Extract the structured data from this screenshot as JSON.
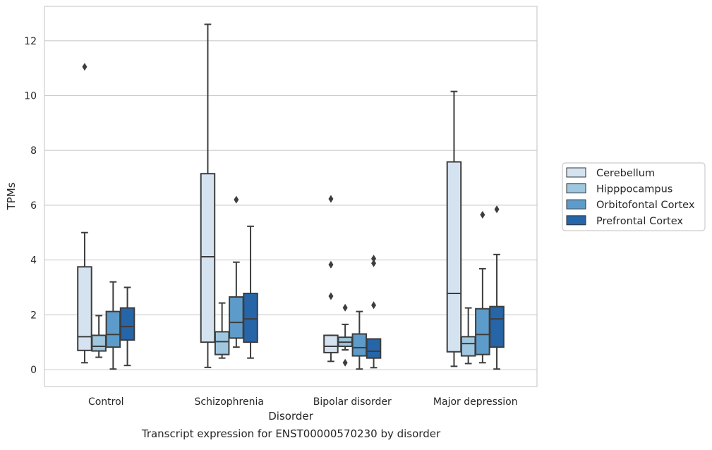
{
  "chart_data": {
    "type": "box",
    "title": "",
    "caption": "Transcript expression for ENST00000570230 by disorder",
    "xlabel": "Disorder",
    "ylabel": "TPMs",
    "ylim": [
      -0.6,
      13.2
    ],
    "yticks": [
      0,
      2,
      4,
      6,
      8,
      10,
      12
    ],
    "grid": true,
    "legend_position": "right",
    "categories": [
      "Control",
      "Schizophrenia",
      "Bipolar disorder",
      "Major depression"
    ],
    "series": [
      {
        "name": "Cerebellum",
        "color": "#d5e3f1",
        "boxes": [
          {
            "whislo": 0.25,
            "q1": 0.7,
            "med": 1.2,
            "q3": 3.75,
            "whishi": 5.0,
            "fliers": [
              11.05
            ]
          },
          {
            "whislo": 0.08,
            "q1": 1.0,
            "med": 4.12,
            "q3": 7.15,
            "whishi": 12.6,
            "fliers": []
          },
          {
            "whislo": 0.3,
            "q1": 0.62,
            "med": 0.85,
            "q3": 1.25,
            "whishi": 1.25,
            "fliers": [
              2.68,
              3.83,
              6.23
            ]
          },
          {
            "whislo": 0.12,
            "q1": 0.65,
            "med": 2.78,
            "q3": 7.58,
            "whishi": 10.15,
            "fliers": []
          }
        ]
      },
      {
        "name": "Hipppocampus",
        "color": "#9fc7e0",
        "boxes": [
          {
            "whislo": 0.45,
            "q1": 0.68,
            "med": 0.85,
            "q3": 1.25,
            "whishi": 1.97,
            "fliers": []
          },
          {
            "whislo": 0.42,
            "q1": 0.55,
            "med": 1.02,
            "q3": 1.38,
            "whishi": 2.43,
            "fliers": []
          },
          {
            "whislo": 0.72,
            "q1": 0.85,
            "med": 1.0,
            "q3": 1.18,
            "whishi": 1.65,
            "fliers": [
              0.25,
              2.26
            ]
          },
          {
            "whislo": 0.22,
            "q1": 0.5,
            "med": 0.95,
            "q3": 1.2,
            "whishi": 2.25,
            "fliers": []
          }
        ]
      },
      {
        "name": "Orbitofontal Cortex",
        "color": "#5d9cca",
        "boxes": [
          {
            "whislo": 0.02,
            "q1": 0.82,
            "med": 1.28,
            "q3": 2.12,
            "whishi": 3.2,
            "fliers": []
          },
          {
            "whislo": 0.82,
            "q1": 1.15,
            "med": 1.72,
            "q3": 2.65,
            "whishi": 3.92,
            "fliers": [
              6.2
            ]
          },
          {
            "whislo": 0.02,
            "q1": 0.5,
            "med": 0.8,
            "q3": 1.3,
            "whishi": 2.12,
            "fliers": []
          },
          {
            "whislo": 0.25,
            "q1": 0.55,
            "med": 1.28,
            "q3": 2.22,
            "whishi": 3.68,
            "fliers": [
              5.65
            ]
          }
        ]
      },
      {
        "name": "Prefrontal Cortex",
        "color": "#2665a7",
        "boxes": [
          {
            "whislo": 0.15,
            "q1": 1.08,
            "med": 1.57,
            "q3": 2.25,
            "whishi": 3.0,
            "fliers": []
          },
          {
            "whislo": 0.42,
            "q1": 1.0,
            "med": 1.85,
            "q3": 2.78,
            "whishi": 5.23,
            "fliers": []
          },
          {
            "whislo": 0.07,
            "q1": 0.42,
            "med": 0.67,
            "q3": 1.12,
            "whishi": 1.12,
            "fliers": [
              2.35,
              3.88,
              4.05
            ]
          },
          {
            "whislo": 0.02,
            "q1": 0.82,
            "med": 1.85,
            "q3": 2.3,
            "whishi": 4.2,
            "fliers": [
              5.85
            ]
          }
        ]
      }
    ]
  }
}
